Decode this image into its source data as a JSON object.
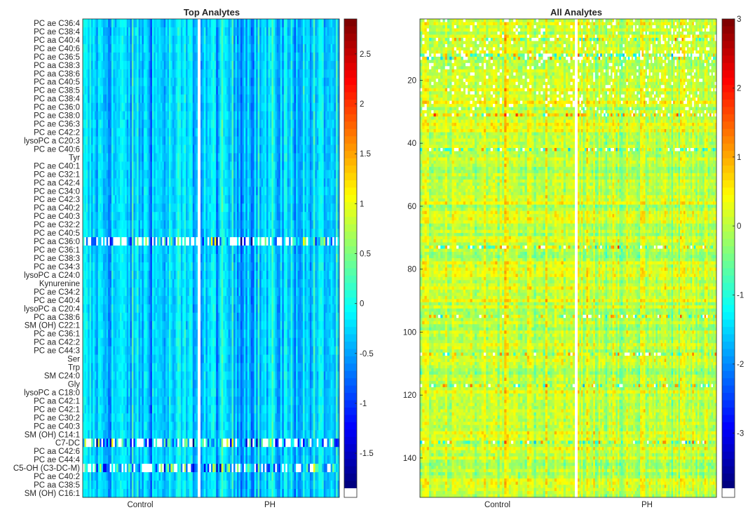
{
  "chart_data": [
    {
      "type": "heatmap",
      "title": "Top Analytes",
      "row_labels": [
        "PC ae C36:4",
        "PC ae C38:4",
        "PC aa C40:4",
        "PC ae C40:6",
        "PC ae C36:5",
        "PC aa C38:3",
        "PC aa C38:6",
        "PC aa C40:5",
        "PC ae C38:5",
        "PC aa C38:4",
        "PC ae C36:0",
        "PC ae C38:0",
        "PC ae C36:3",
        "PC ae C42:2",
        "lysoPC a C20:3",
        "PC ae C40:6",
        "Tyr",
        "PC ae C40:1",
        "PC ae C32:1",
        "PC aa C42:4",
        "PC ae C34:0",
        "PC ae C42:3",
        "PC aa C40:2",
        "PC ae C40:3",
        "PC ae C32:2",
        "PC ae C40:5",
        "PC aa C36:0",
        "PC ae C36:1",
        "PC ae C38:3",
        "PC ae C34:3",
        "lysoPC a C24:0",
        "Kynurenine",
        "PC ae C34:2",
        "PC ae C40:4",
        "lysoPC a C20:4",
        "PC aa C38:6",
        "SM (OH) C22:1",
        "PC ae C36:1",
        "PC aa C42:2",
        "PC ae C44:3",
        "Ser",
        "Trp",
        "SM C24:0",
        "Gly",
        "lysoPC a C18:0",
        "PC aa C42:1",
        "PC ae C42:1",
        "PC ae C30:2",
        "PC ae C40:3",
        "SM (OH) C14:1",
        "C7-DC",
        "PC aa C42:6",
        "PC ae C44:4",
        "C5-OH (C3-DC-M)",
        "PC ae C40:2",
        "PC aa C38:5",
        "SM (OH) C16:1"
      ],
      "groups": [
        "Control",
        "PH"
      ],
      "group_columns": [
        68,
        80
      ],
      "colorbar": {
        "ticks": [
          "2.5",
          "2",
          "1.5",
          "1",
          "0.5",
          "0",
          "-0.5",
          "-1",
          "-1.5"
        ],
        "range": [
          -1.85,
          2.85
        ],
        "missing_color": "#ffffff"
      },
      "colormap": "jet",
      "typical_value": -0.3,
      "missing_rows": [
        "PC aa C36:0",
        "C7-DC",
        "C5-OH (C3-DC-M)"
      ]
    },
    {
      "type": "heatmap",
      "title": "All Analytes",
      "y_ticks": [
        "20",
        "40",
        "60",
        "80",
        "100",
        "120",
        "140"
      ],
      "y_range": [
        1,
        152
      ],
      "groups": [
        "Control",
        "PH"
      ],
      "group_columns": [
        68,
        80
      ],
      "colorbar": {
        "ticks": [
          "3",
          "2",
          "1",
          "0",
          "-1",
          "-2",
          "-3"
        ],
        "range": [
          -3.8,
          3.0
        ],
        "missing_color": "#ffffff"
      },
      "colormap": "jet",
      "typical_value": 0.1
    }
  ]
}
